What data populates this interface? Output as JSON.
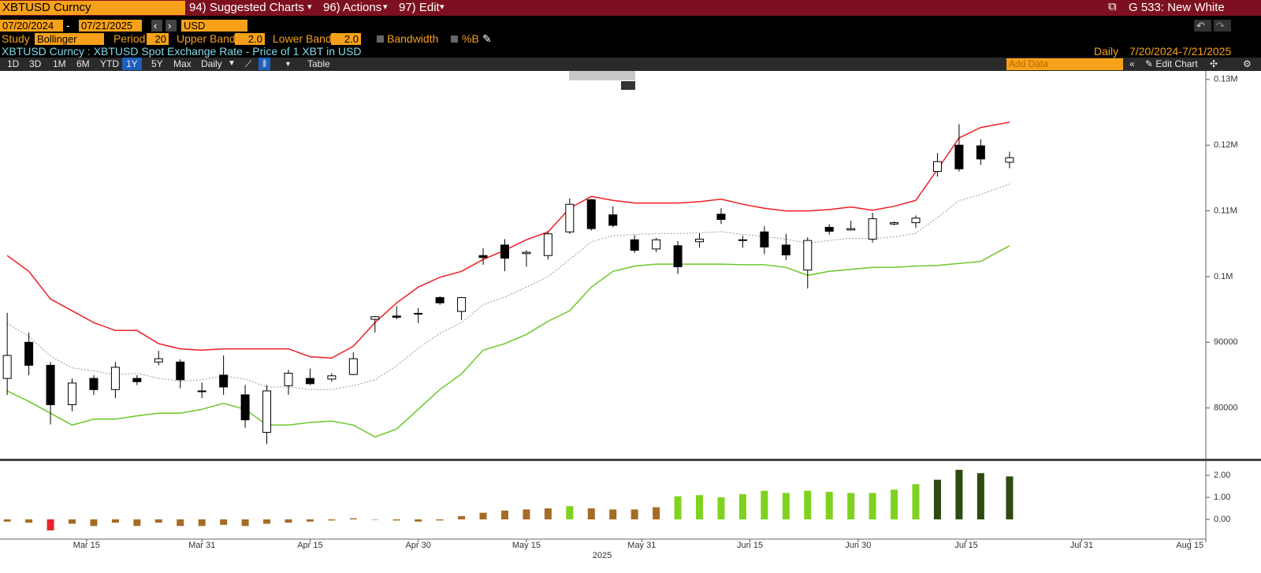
{
  "toolbar": {
    "security": "XBTUSD Curncy",
    "menu": [
      "94) Suggested Charts",
      "96) Actions",
      "97) Edit"
    ],
    "page": "G 533: New White"
  },
  "range": {
    "start": "07/20/2024",
    "end": "07/21/2025",
    "currency": "USD"
  },
  "study": {
    "label": "Study",
    "name": "Bollinger",
    "period_label": "Period",
    "period": "20",
    "upper_label": "Upper Band",
    "upper": "2.0",
    "lower_label": "Lower Band",
    "lower": "2.0",
    "bandwidth": "Bandwidth",
    "percent_b": "%B"
  },
  "header": {
    "description": "XBTUSD Curncy : XBTUSD Spot Exchange Rate - Price of 1 XBT in USD",
    "frequency": "Daily",
    "period": "7/20/2024-7/21/2025"
  },
  "buttons": [
    "1D",
    "3D",
    "1M",
    "6M",
    "YTD",
    "1Y",
    "5Y",
    "Max",
    "Daily",
    "Table"
  ],
  "add_data": "Add Data",
  "edit_chart": "Edit Chart",
  "chart_data": [
    {
      "type": "candlestick",
      "x": [
        "2025-03-04",
        "2025-03-07",
        "2025-03-10",
        "2025-03-13",
        "2025-03-16",
        "2025-03-19",
        "2025-03-22",
        "2025-03-25",
        "2025-03-28",
        "2025-03-31",
        "2025-04-03",
        "2025-04-06",
        "2025-04-09",
        "2025-04-12",
        "2025-04-15",
        "2025-04-18",
        "2025-04-21",
        "2025-04-24",
        "2025-04-27",
        "2025-04-30",
        "2025-05-03",
        "2025-05-06",
        "2025-05-09",
        "2025-05-12",
        "2025-05-15",
        "2025-05-18",
        "2025-05-21",
        "2025-05-24",
        "2025-05-27",
        "2025-05-30",
        "2025-06-02",
        "2025-06-05",
        "2025-06-08",
        "2025-06-11",
        "2025-06-14",
        "2025-06-17",
        "2025-06-20",
        "2025-06-23",
        "2025-06-26",
        "2025-06-29",
        "2025-07-02",
        "2025-07-05",
        "2025-07-08",
        "2025-07-11",
        "2025-07-14",
        "2025-07-17",
        "2025-07-21"
      ],
      "open": [
        84500,
        90000,
        86500,
        80500,
        84500,
        82800,
        84500,
        87000,
        87000,
        82500,
        85000,
        82000,
        76300,
        83400,
        84500,
        84400,
        85100,
        93500,
        94000,
        94300,
        96800,
        94700,
        103200,
        104800,
        103500,
        103200,
        106800,
        111700,
        109400,
        105600,
        104200,
        104700,
        105300,
        109500,
        105600,
        106800,
        104800,
        101000,
        107500,
        107100,
        105700,
        108000,
        108200,
        116000,
        120000,
        119900,
        117400
      ],
      "high": [
        94500,
        91500,
        87000,
        84500,
        85000,
        87000,
        85000,
        88700,
        87400,
        83900,
        88000,
        83500,
        83500,
        85800,
        86000,
        85300,
        88500,
        94000,
        95500,
        95200,
        97000,
        96900,
        104300,
        105700,
        104000,
        106900,
        111900,
        111800,
        110700,
        106300,
        105900,
        105400,
        106600,
        110400,
        106200,
        107700,
        106500,
        106000,
        108000,
        108500,
        109700,
        108400,
        109300,
        118800,
        123200,
        120900,
        119000
      ],
      "low": [
        82000,
        85000,
        77500,
        79500,
        82000,
        81500,
        83500,
        86500,
        83000,
        81500,
        82000,
        77000,
        74500,
        82000,
        83500,
        84000,
        85000,
        91500,
        93500,
        92900,
        95700,
        93400,
        101800,
        100800,
        101500,
        102600,
        106500,
        107000,
        107500,
        103600,
        103700,
        100400,
        104400,
        108000,
        104400,
        103400,
        102500,
        98200,
        106400,
        107000,
        105200,
        107800,
        107400,
        115200,
        116000,
        117000,
        116500
      ],
      "close": [
        88000,
        86500,
        80500,
        83800,
        82800,
        86200,
        84000,
        87500,
        84300,
        82600,
        83200,
        78200,
        82600,
        85300,
        83700,
        84900,
        87500,
        93900,
        93800,
        94400,
        96000,
        96800,
        102900,
        102800,
        103700,
        106500,
        111000,
        107300,
        107800,
        104000,
        105600,
        101500,
        105700,
        108700,
        105500,
        104500,
        103300,
        105500,
        106900,
        107300,
        108800,
        108200,
        108900,
        117500,
        116400,
        117900,
        118100
      ],
      "up_color": "#ffffff",
      "down_color": "#000000",
      "bands": [
        {
          "color": "#ee1c25",
          "dash": false,
          "values": [
            103200,
            100800,
            96600,
            94800,
            93000,
            91800,
            91800,
            89800,
            89000,
            88800,
            89000,
            89000,
            89000,
            89000,
            87800,
            87600,
            89400,
            93000,
            96000,
            98400,
            99900,
            100800,
            102600,
            104000,
            105600,
            106800,
            110400,
            112200,
            111600,
            111200,
            111200,
            111200,
            111400,
            111800,
            111000,
            110400,
            110000,
            110000,
            110200,
            110600,
            110100,
            110700,
            111600,
            116300,
            121100,
            122700,
            123500
          ]
        },
        {
          "color": "#9a9a9a",
          "dash": true,
          "values": [
            92900,
            90900,
            87900,
            86100,
            85650,
            85050,
            85300,
            84500,
            84100,
            84300,
            84850,
            84400,
            83200,
            83200,
            82800,
            82800,
            83400,
            84300,
            86400,
            89100,
            91350,
            93000,
            95700,
            96900,
            98400,
            100000,
            102600,
            105300,
            106200,
            106400,
            106550,
            106550,
            106650,
            106850,
            106400,
            106100,
            105700,
            105100,
            105500,
            105850,
            105750,
            106050,
            106600,
            109000,
            111550,
            112500,
            114100
          ]
        },
        {
          "color": "#6cc829",
          "dash": false,
          "values": [
            82600,
            81000,
            79200,
            77400,
            78300,
            78300,
            78800,
            79200,
            79200,
            79800,
            80700,
            79800,
            77400,
            77400,
            77800,
            78000,
            77400,
            75600,
            76800,
            79800,
            82800,
            85200,
            88800,
            89800,
            91200,
            93200,
            94800,
            98400,
            100800,
            101600,
            101900,
            101900,
            101900,
            101900,
            101800,
            101800,
            101400,
            100200,
            100800,
            101100,
            101400,
            101400,
            101600,
            101700,
            102000,
            102300,
            104700
          ]
        }
      ],
      "xlim": [
        "2025-03-03",
        "2025-08-17"
      ],
      "xticks": [
        {
          "value": "2025-03-15",
          "label": "Mar 15"
        },
        {
          "value": "2025-03-31",
          "label": "Mar 31"
        },
        {
          "value": "2025-04-15",
          "label": "Apr 15"
        },
        {
          "value": "2025-04-30",
          "label": "Apr 30"
        },
        {
          "value": "2025-05-15",
          "label": "May 15"
        },
        {
          "value": "2025-05-31",
          "label": "May 31"
        },
        {
          "value": "2025-06-15",
          "label": "Jun 15"
        },
        {
          "value": "2025-06-30",
          "label": "Jun 30"
        },
        {
          "value": "2025-07-15",
          "label": "Jul 15"
        },
        {
          "value": "2025-07-31",
          "label": "Jul 31"
        },
        {
          "value": "2025-08-15",
          "label": "Aug 15"
        }
      ],
      "xlabel": "2025",
      "ylim": [
        72400,
        131300
      ],
      "yticks": [
        {
          "value": 130000,
          "label": "0.13M"
        },
        {
          "value": 120000,
          "label": "0.12M"
        },
        {
          "value": 110000,
          "label": "0.11M"
        },
        {
          "value": 100000,
          "label": "0.1M"
        },
        90000,
        80000
      ]
    },
    {
      "type": "bar",
      "x": [
        "2025-03-04",
        "2025-03-07",
        "2025-03-10",
        "2025-03-13",
        "2025-03-16",
        "2025-03-19",
        "2025-03-22",
        "2025-03-25",
        "2025-03-28",
        "2025-03-31",
        "2025-04-03",
        "2025-04-06",
        "2025-04-09",
        "2025-04-12",
        "2025-04-15",
        "2025-04-18",
        "2025-04-21",
        "2025-04-24",
        "2025-04-27",
        "2025-04-30",
        "2025-05-03",
        "2025-05-06",
        "2025-05-09",
        "2025-05-12",
        "2025-05-15",
        "2025-05-18",
        "2025-05-21",
        "2025-05-24",
        "2025-05-27",
        "2025-05-30",
        "2025-06-02",
        "2025-06-05",
        "2025-06-08",
        "2025-06-11",
        "2025-06-14",
        "2025-06-17",
        "2025-06-20",
        "2025-06-23",
        "2025-06-26",
        "2025-06-29",
        "2025-07-02",
        "2025-07-05",
        "2025-07-08",
        "2025-07-11",
        "2025-07-14",
        "2025-07-17",
        "2025-07-21"
      ],
      "values": [
        -0.1,
        -0.15,
        -0.5,
        -0.2,
        -0.3,
        -0.15,
        -0.3,
        -0.15,
        -0.3,
        -0.3,
        -0.25,
        -0.3,
        -0.2,
        -0.15,
        -0.1,
        -0.05,
        0.05,
        0.0,
        -0.05,
        -0.1,
        -0.05,
        0.15,
        0.3,
        0.4,
        0.45,
        0.5,
        0.6,
        0.5,
        0.45,
        0.45,
        0.55,
        1.05,
        1.1,
        1.0,
        1.15,
        1.3,
        1.2,
        1.3,
        1.25,
        1.2,
        1.2,
        1.35,
        1.6,
        1.8,
        2.25,
        2.1,
        1.95
      ],
      "colors": [
        "#a66b26",
        "#a66b26",
        "#e8232d",
        "#a66b26",
        "#a66b26",
        "#a66b26",
        "#a66b26",
        "#a66b26",
        "#a66b26",
        "#a66b26",
        "#a66b26",
        "#a66b26",
        "#a66b26",
        "#a66b26",
        "#a66b26",
        "#a66b26",
        "#a66b26",
        "#a66b26",
        "#a66b26",
        "#a66b26",
        "#a66b26",
        "#a66b26",
        "#a66b26",
        "#a66b26",
        "#a66b26",
        "#a66b26",
        "#7fd21f",
        "#a66b26",
        "#a66b26",
        "#a66b26",
        "#a66b26",
        "#7fd21f",
        "#7fd21f",
        "#7fd21f",
        "#7fd21f",
        "#7fd21f",
        "#7fd21f",
        "#7fd21f",
        "#7fd21f",
        "#7fd21f",
        "#7fd21f",
        "#7fd21f",
        "#7fd21f",
        "#2e4a10",
        "#2e4a10",
        "#2e4a10",
        "#2e4a10"
      ],
      "ylim": [
        -0.86,
        2.54
      ],
      "yticks": [
        {
          "value": 2,
          "label": "2.00"
        },
        {
          "value": 1,
          "label": "1.00"
        },
        {
          "value": 0,
          "label": "0.00"
        }
      ]
    }
  ]
}
